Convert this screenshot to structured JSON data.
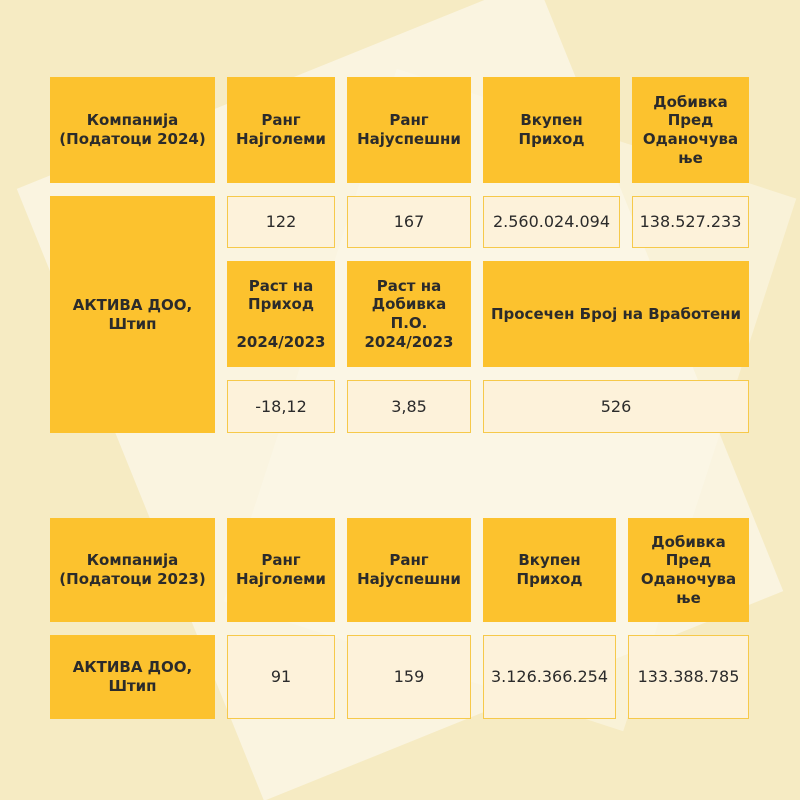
{
  "table_2024": {
    "header": [
      "Компанија\n(Податоци 2024)",
      "Ранг\nНајголеми",
      "Ранг\nНајуспешни",
      "Вкупен\nПриход",
      "Добивка\nПред\nОданочува\nње"
    ],
    "company": "АКТИВА ДОО,\nШтип",
    "values": [
      "122",
      "167",
      "2.560.024.094",
      "138.527.233"
    ],
    "header_2": [
      "Раст на\nПриход\n\n2024/2023",
      "Раст на\nДобивка\nП.О.\n2024/2023",
      "Просечен Број на Вработени"
    ],
    "values_2": [
      "-18,12",
      "3,85",
      "526"
    ]
  },
  "table_2023": {
    "header": [
      "Компанија\n(Податоци 2023)",
      "Ранг\nНајголеми",
      "Ранг\nНајуспешни",
      "Вкупен\nПриход",
      "Добивка\nПред\nОданочува\nње"
    ],
    "company": "АКТИВА ДОО,\nШтип",
    "values": [
      "91",
      "159",
      "3.126.366.254",
      "133.388.785"
    ]
  }
}
